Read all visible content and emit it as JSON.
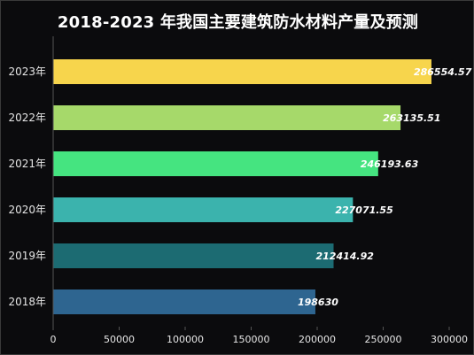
{
  "chart_data": {
    "type": "bar",
    "orientation": "horizontal",
    "title": "2018-2023 年我国主要建筑防水材料产量及预测",
    "categories": [
      "2023年",
      "2022年",
      "2021年",
      "2020年",
      "2019年",
      "2018年"
    ],
    "values": [
      286554.57,
      263135.51,
      246193.63,
      227071.55,
      212414.92,
      198630
    ],
    "data_labels": [
      "286554.57",
      "263135.51",
      "246193.63",
      "227071.55",
      "212414.92",
      "198630"
    ],
    "colors": [
      "#f7d54c",
      "#a6d96a",
      "#45e480",
      "#3bb3ad",
      "#1c6b72",
      "#2e6590"
    ],
    "xlim": [
      0,
      300000
    ],
    "xticks": [
      0,
      50000,
      100000,
      150000,
      200000,
      250000,
      300000
    ],
    "xtick_labels": [
      "0",
      "50000",
      "100000",
      "150000",
      "200000",
      "250000",
      "300000"
    ],
    "grid": false,
    "legend": "none"
  }
}
